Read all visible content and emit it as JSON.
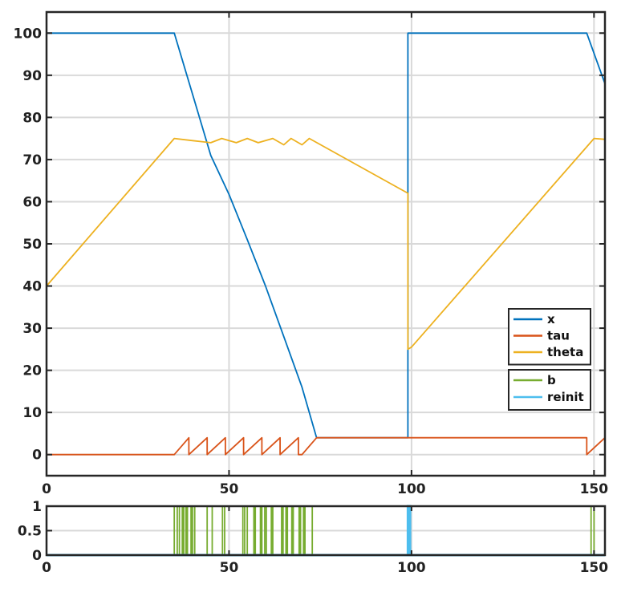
{
  "chart_data": [
    {
      "type": "line",
      "title": "",
      "xlabel": "",
      "ylabel": "",
      "xlim": [
        0,
        153
      ],
      "ylim": [
        -5,
        105
      ],
      "xticks": [
        0,
        50,
        100,
        150
      ],
      "yticks": [
        0,
        10,
        20,
        30,
        40,
        50,
        60,
        70,
        80,
        90,
        100
      ],
      "xtick_labels": [
        "0",
        "50",
        "100",
        "150"
      ],
      "ytick_labels": [
        "0",
        "10",
        "20",
        "30",
        "40",
        "50",
        "60",
        "70",
        "80",
        "90",
        "100"
      ],
      "grid": true,
      "legend_placement": "right",
      "legend_groups": [
        [
          "x",
          "tau",
          "theta"
        ],
        [
          "b",
          "reinit"
        ]
      ],
      "series": [
        {
          "name": "x",
          "color": "#0072BD",
          "x": [
            0,
            35,
            40,
            45,
            50,
            55,
            60,
            65,
            70,
            74,
            99,
            99,
            100,
            148,
            153
          ],
          "y": [
            100,
            100,
            85.5,
            71,
            61.7,
            51,
            40,
            28,
            16,
            4,
            4,
            100,
            100,
            100,
            88
          ]
        },
        {
          "name": "tau",
          "color": "#D95319",
          "x": [
            0,
            35,
            39,
            39,
            44,
            44,
            49,
            49,
            54,
            54,
            59,
            59,
            64,
            64,
            69,
            69,
            70,
            74,
            148,
            148,
            153
          ],
          "y": [
            0,
            0,
            4,
            0,
            4,
            0,
            4,
            0,
            4,
            0,
            4,
            0,
            4,
            0,
            4,
            0,
            0,
            4,
            4,
            0,
            4
          ]
        },
        {
          "name": "theta",
          "color": "#EDB120",
          "x": [
            0,
            35,
            40,
            45,
            48,
            52,
            55,
            58,
            62,
            65,
            67,
            70,
            72,
            99,
            99,
            100,
            150,
            153
          ],
          "y": [
            40,
            75,
            74.5,
            74,
            75,
            74,
            75,
            74,
            75,
            73.5,
            75,
            73.5,
            75,
            62,
            25,
            25.5,
            75,
            74.8
          ]
        }
      ]
    },
    {
      "type": "line",
      "title": "",
      "xlabel": "",
      "ylabel": "",
      "xlim": [
        0,
        153
      ],
      "ylim": [
        0,
        1
      ],
      "xticks": [
        0,
        50,
        100,
        150
      ],
      "yticks": [
        0,
        0.5,
        1
      ],
      "xtick_labels": [
        "0",
        "50",
        "100",
        "150"
      ],
      "ytick_labels": [
        "0",
        "0.5",
        "1"
      ],
      "grid": true,
      "series": [
        {
          "name": "b",
          "color": "#77AC30",
          "on_intervals": [
            [
              35,
              35.8
            ],
            [
              36.4,
              37.2
            ],
            [
              37.6,
              38.2
            ],
            [
              38.6,
              39.6
            ],
            [
              40,
              40.6
            ],
            [
              44,
              45.4
            ],
            [
              48.2,
              48.8
            ],
            [
              53.8,
              54.3
            ],
            [
              55,
              56.8
            ],
            [
              57.2,
              58.6
            ],
            [
              59,
              59.8
            ],
            [
              60.2,
              61.6
            ],
            [
              62,
              64.4
            ],
            [
              64.8,
              65.6
            ],
            [
              66,
              67.2
            ],
            [
              67.6,
              69.2
            ],
            [
              69.6,
              70.4
            ],
            [
              70.8,
              72.8
            ],
            [
              149.2,
              150
            ]
          ]
        },
        {
          "name": "reinit",
          "color": "#4DBEEE",
          "on_intervals": [
            [
              99,
              99.6
            ]
          ]
        }
      ]
    }
  ]
}
